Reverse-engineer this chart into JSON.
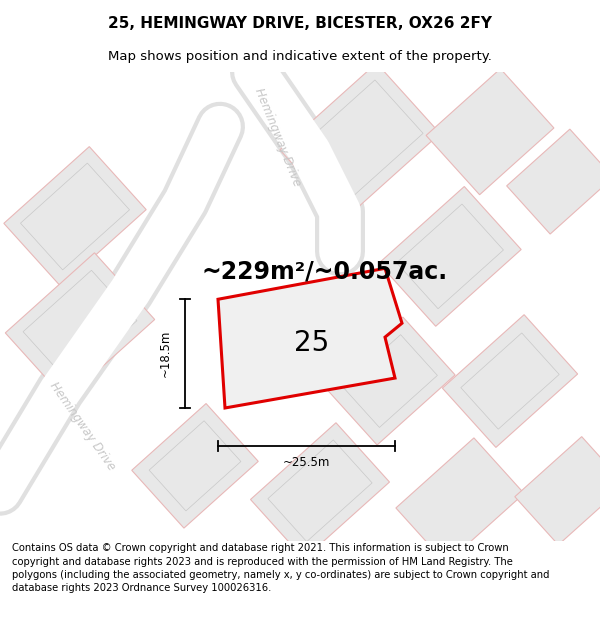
{
  "title": "25, HEMINGWAY DRIVE, BICESTER, OX26 2FY",
  "subtitle": "Map shows position and indicative extent of the property.",
  "footer": "Contains OS data © Crown copyright and database right 2021. This information is subject to Crown copyright and database rights 2023 and is reproduced with the permission of HM Land Registry. The polygons (including the associated geometry, namely x, y co-ordinates) are subject to Crown copyright and database rights 2023 Ordnance Survey 100026316.",
  "area_label": "~229m²/~0.057ac.",
  "house_number": "25",
  "dim_width": "~25.5m",
  "dim_height": "~18.5m",
  "map_bg": "#f2f2f2",
  "road_color": "#ffffff",
  "road_border": "#e0e0e0",
  "building_fill": "#e8e8e8",
  "building_stroke": "#e8b8b8",
  "inner_building_stroke": "#c8c8c8",
  "highlight_stroke": "#e00000",
  "highlight_fill": "#f0f0f0",
  "title_fontsize": 11,
  "subtitle_fontsize": 9.5,
  "footer_fontsize": 7.2,
  "area_fontsize": 17,
  "number_fontsize": 20,
  "road_label_color": "#c8c8c8",
  "road_label_size": 8.5
}
